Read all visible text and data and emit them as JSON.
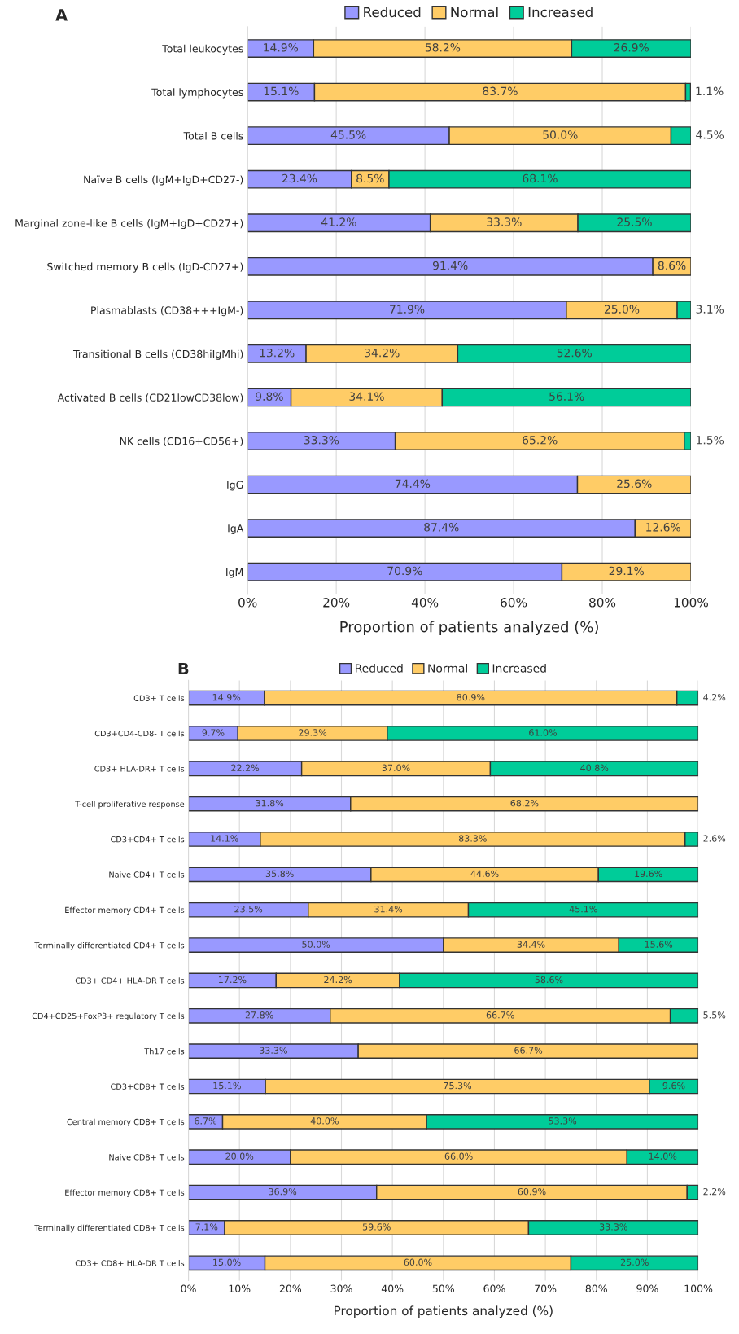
{
  "chart_data": [
    {
      "type": "bar",
      "orientation": "horizontal",
      "stacked": true,
      "title": "A",
      "xlabel": "Proportion of patients analyzed (%)",
      "legend": "top",
      "grid": "x",
      "categories": [
        "Total leukocytes",
        "Total lymphocytes",
        "Total B cells",
        "Naïve B cells (IgM+IgD+CD27-)",
        "Marginal zone-like B cells (IgM+IgD+CD27+)",
        "Switched memory B cells (IgD-CD27+)",
        "Plasmablasts (CD38+++IgM-)",
        "Transitional B cells (CD38hiIgMhi)",
        "Activated B cells (CD21lowCD38low)",
        "NK cells (CD16+CD56+)",
        "IgG",
        "IgA",
        "IgM"
      ],
      "xlim": [
        0,
        100
      ],
      "xticks": [
        {
          "value": 0,
          "label": "0%"
        },
        {
          "value": 20,
          "label": "20%"
        },
        {
          "value": 40,
          "label": "40%"
        },
        {
          "value": 60,
          "label": "60%"
        },
        {
          "value": 80,
          "label": "80%"
        },
        {
          "value": 100,
          "label": "100%"
        }
      ],
      "series": [
        {
          "name": "Reduced",
          "color": "#9999ff",
          "values": [
            14.9,
            15.1,
            45.5,
            23.4,
            41.2,
            91.4,
            71.9,
            13.2,
            9.8,
            33.3,
            74.4,
            87.4,
            70.9
          ],
          "value_labels": [
            "14.9%",
            "15.1%",
            "45.5%",
            "23.4%",
            "41.2%",
            "91.4%",
            "71.9%",
            "13.2%",
            "9.8%",
            "33.3%",
            "74.4%",
            "87.4%",
            "70.9%"
          ]
        },
        {
          "name": "Normal",
          "color": "#ffcc66",
          "values": [
            58.2,
            83.7,
            50.0,
            8.5,
            33.3,
            8.6,
            25.0,
            34.2,
            34.1,
            65.2,
            25.6,
            12.6,
            29.1
          ],
          "value_labels": [
            "58.2%",
            "83.7%",
            "50.0%",
            "8.5%",
            "33.3%",
            "8.6%",
            "25.0%",
            "34.2%",
            "34.1%",
            "65.2%",
            "25.6%",
            "12.6%",
            "29.1%"
          ]
        },
        {
          "name": "Increased",
          "color": "#00cc99",
          "values": [
            26.9,
            1.1,
            4.5,
            68.1,
            25.5,
            0,
            3.1,
            52.6,
            56.1,
            1.5,
            0,
            0,
            0
          ],
          "value_labels": [
            "26.9%",
            "1.1%",
            "4.5%",
            "68.1%",
            "25.5%",
            null,
            "3.1%",
            "52.6%",
            "56.1%",
            "1.5%",
            null,
            null,
            null
          ]
        }
      ]
    },
    {
      "type": "bar",
      "orientation": "horizontal",
      "stacked": true,
      "title": "B",
      "xlabel": "Proportion of patients analyzed (%)",
      "legend": "top",
      "grid": "x",
      "categories": [
        "CD3+ T cells",
        "CD3+CD4-CD8- T cells",
        "CD3+ HLA-DR+ T cells",
        "T-cell proliferative response",
        "CD3+CD4+ T cells",
        "Naive CD4+ T cells",
        "Effector memory CD4+ T cells",
        "Terminally differentiated CD4+ T cells",
        "CD3+ CD4+ HLA-DR T cells",
        "CD4+CD25+FoxP3+ regulatory T cells",
        "Th17 cells",
        "CD3+CD8+ T cells",
        "Central memory CD8+ T cells",
        "Naive CD8+ T cells",
        "Effector memory CD8+ T cells",
        "Terminally differentiated CD8+ T cells",
        "CD3+ CD8+ HLA-DR T cells"
      ],
      "xlim": [
        0,
        100
      ],
      "xticks": [
        {
          "value": 0,
          "label": "0%"
        },
        {
          "value": 10,
          "label": "10%"
        },
        {
          "value": 20,
          "label": "20%"
        },
        {
          "value": 30,
          "label": "30%"
        },
        {
          "value": 40,
          "label": "40%"
        },
        {
          "value": 50,
          "label": "50%"
        },
        {
          "value": 60,
          "label": "60%"
        },
        {
          "value": 70,
          "label": "70%"
        },
        {
          "value": 80,
          "label": "80%"
        },
        {
          "value": 90,
          "label": "90%"
        },
        {
          "value": 100,
          "label": "100%"
        }
      ],
      "series": [
        {
          "name": "Reduced",
          "color": "#9999ff",
          "values": [
            14.9,
            9.7,
            22.2,
            31.8,
            14.1,
            35.8,
            23.5,
            50.0,
            17.2,
            27.8,
            33.3,
            15.1,
            6.7,
            20.0,
            36.9,
            7.1,
            15.0
          ],
          "value_labels": [
            "14.9%",
            "9.7%",
            "22.2%",
            "31.8%",
            "14.1%",
            "35.8%",
            "23.5%",
            "50.0%",
            "17.2%",
            "27.8%",
            "33.3%",
            "15.1%",
            "6.7%",
            "20.0%",
            "36.9%",
            "7.1%",
            "15.0%"
          ]
        },
        {
          "name": "Normal",
          "color": "#ffcc66",
          "values": [
            80.9,
            29.3,
            37.0,
            68.2,
            83.3,
            44.6,
            31.4,
            34.4,
            24.2,
            66.7,
            66.7,
            75.3,
            40.0,
            66.0,
            60.9,
            59.6,
            60.0
          ],
          "value_labels": [
            "80.9%",
            "29.3%",
            "37.0%",
            "68.2%",
            "83.3%",
            "44.6%",
            "31.4%",
            "34.4%",
            "24.2%",
            "66.7%",
            "66.7%",
            "75.3%",
            "40.0%",
            "66.0%",
            "60.9%",
            "59.6%",
            "60.0%"
          ]
        },
        {
          "name": "Increased",
          "color": "#00cc99",
          "values": [
            4.2,
            61.0,
            40.8,
            0,
            2.6,
            19.6,
            45.1,
            15.6,
            58.6,
            5.5,
            0,
            9.6,
            53.3,
            14.0,
            2.2,
            33.3,
            25.0
          ],
          "value_labels": [
            "4.2%",
            "61.0%",
            "40.8%",
            null,
            "2.6%",
            "19.6%",
            "45.1%",
            "15.6%",
            "58.6%",
            "5.5%",
            null,
            "9.6%",
            "53.3%",
            "14.0%",
            "2.2%",
            "33.3%",
            "25.0%"
          ]
        }
      ]
    }
  ]
}
